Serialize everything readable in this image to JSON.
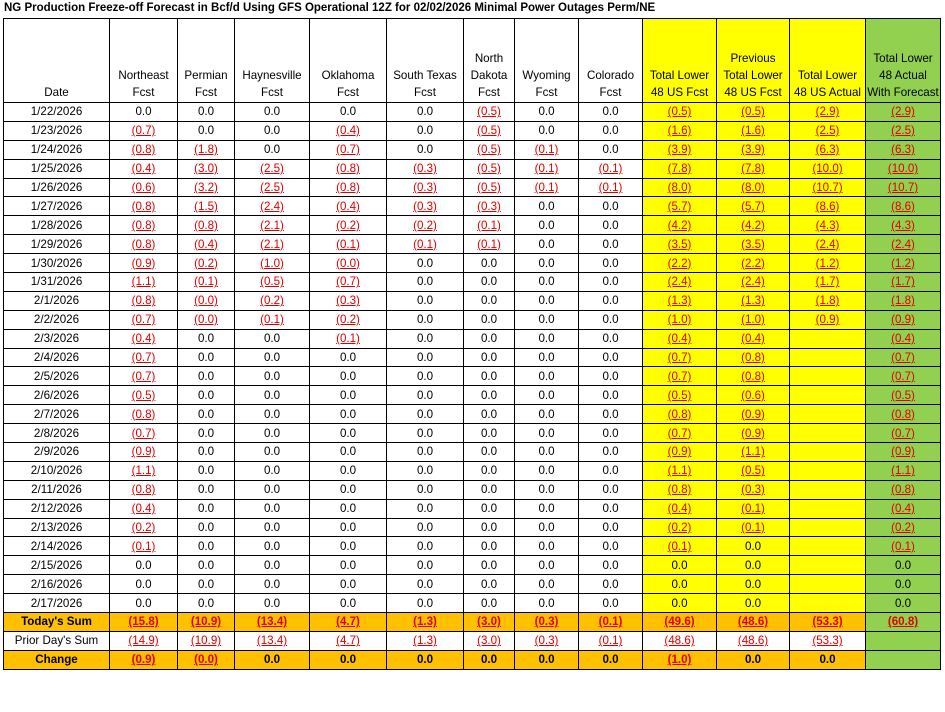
{
  "title": "NG Production Freeze-off Forecast in Bcf/d Using GFS Operational 12Z for 02/02/2026 Minimal Power Outages Perm/NE",
  "columns": [
    {
      "label": "Date",
      "fill": "none"
    },
    {
      "label": "Northeast Fcst",
      "fill": "none"
    },
    {
      "label": "Permian Fcst",
      "fill": "none"
    },
    {
      "label": "Haynesville Fcst",
      "fill": "none"
    },
    {
      "label": "Oklahoma Fcst",
      "fill": "none"
    },
    {
      "label": "South Texas Fcst",
      "fill": "none"
    },
    {
      "label": "North Dakota Fcst",
      "fill": "none"
    },
    {
      "label": "Wyoming Fcst",
      "fill": "none"
    },
    {
      "label": "Colorado Fcst",
      "fill": "none"
    },
    {
      "label": "Total Lower 48 US Fcst",
      "fill": "yellow"
    },
    {
      "label": "Previous Total Lower 48 US Fcst",
      "fill": "yellow"
    },
    {
      "label": "Total Lower 48 US Actual",
      "fill": "yellow"
    },
    {
      "label": "Total Lower 48 Actual With Forecast",
      "fill": "green"
    }
  ],
  "colors": {
    "yellow": "#ffff00",
    "green": "#92d050",
    "orange": "#ffc000",
    "negative": "#e00000"
  },
  "rows": [
    [
      "1/22/2026",
      "0.0",
      "0.0",
      "0.0",
      "0.0",
      "0.0",
      "(0.5)",
      "0.0",
      "0.0",
      "(0.5)",
      "(0.5)",
      "(2.9)",
      "(2.9)"
    ],
    [
      "1/23/2026",
      "(0.7)",
      "0.0",
      "0.0",
      "(0.4)",
      "0.0",
      "(0.5)",
      "0.0",
      "0.0",
      "(1.6)",
      "(1.6)",
      "(2.5)",
      "(2.5)"
    ],
    [
      "1/24/2026",
      "(0.8)",
      "(1.8)",
      "0.0",
      "(0.7)",
      "0.0",
      "(0.5)",
      "(0.1)",
      "0.0",
      "(3.9)",
      "(3.9)",
      "(6.3)",
      "(6.3)"
    ],
    [
      "1/25/2026",
      "(0.4)",
      "(3.0)",
      "(2.5)",
      "(0.8)",
      "(0.3)",
      "(0.5)",
      "(0.1)",
      "(0.1)",
      "(7.8)",
      "(7.8)",
      "(10.0)",
      "(10.0)"
    ],
    [
      "1/26/2026",
      "(0.6)",
      "(3.2)",
      "(2.5)",
      "(0.8)",
      "(0.3)",
      "(0.5)",
      "(0.1)",
      "(0.1)",
      "(8.0)",
      "(8.0)",
      "(10.7)",
      "(10.7)"
    ],
    [
      "1/27/2026",
      "(0.8)",
      "(1.5)",
      "(2.4)",
      "(0.4)",
      "(0.3)",
      "(0.3)",
      "0.0",
      "0.0",
      "(5.7)",
      "(5.7)",
      "(8.6)",
      "(8.6)"
    ],
    [
      "1/28/2026",
      "(0.8)",
      "(0.8)",
      "(2.1)",
      "(0.2)",
      "(0.2)",
      "(0.1)",
      "0.0",
      "0.0",
      "(4.2)",
      "(4.2)",
      "(4.3)",
      "(4.3)"
    ],
    [
      "1/29/2026",
      "(0.8)",
      "(0.4)",
      "(2.1)",
      "(0.1)",
      "(0.1)",
      "(0.1)",
      "0.0",
      "0.0",
      "(3.5)",
      "(3.5)",
      "(2.4)",
      "(2.4)"
    ],
    [
      "1/30/2026",
      "(0.9)",
      "(0.2)",
      "(1.0)",
      "(0.0)",
      "0.0",
      "0.0",
      "0.0",
      "0.0",
      "(2.2)",
      "(2.2)",
      "(1.2)",
      "(1.2)"
    ],
    [
      "1/31/2026",
      "(1.1)",
      "(0.1)",
      "(0.5)",
      "(0.7)",
      "0.0",
      "0.0",
      "0.0",
      "0.0",
      "(2.4)",
      "(2.4)",
      "(1.7)",
      "(1.7)"
    ],
    [
      "2/1/2026",
      "(0.8)",
      "(0.0)",
      "(0.2)",
      "(0.3)",
      "0.0",
      "0.0",
      "0.0",
      "0.0",
      "(1.3)",
      "(1.3)",
      "(1.8)",
      "(1.8)"
    ],
    [
      "2/2/2026",
      "(0.7)",
      "(0.0)",
      "(0.1)",
      "(0.2)",
      "0.0",
      "0.0",
      "0.0",
      "0.0",
      "(1.0)",
      "(1.0)",
      "(0.9)",
      "(0.9)"
    ],
    [
      "2/3/2026",
      "(0.4)",
      "0.0",
      "0.0",
      "(0.1)",
      "0.0",
      "0.0",
      "0.0",
      "0.0",
      "(0.4)",
      "(0.4)",
      "",
      "(0.4)"
    ],
    [
      "2/4/2026",
      "(0.7)",
      "0.0",
      "0.0",
      "0.0",
      "0.0",
      "0.0",
      "0.0",
      "0.0",
      "(0.7)",
      "(0.8)",
      "",
      "(0.7)"
    ],
    [
      "2/5/2026",
      "(0.7)",
      "0.0",
      "0.0",
      "0.0",
      "0.0",
      "0.0",
      "0.0",
      "0.0",
      "(0.7)",
      "(0.8)",
      "",
      "(0.7)"
    ],
    [
      "2/6/2026",
      "(0.5)",
      "0.0",
      "0.0",
      "0.0",
      "0.0",
      "0.0",
      "0.0",
      "0.0",
      "(0.5)",
      "(0.6)",
      "",
      "(0.5)"
    ],
    [
      "2/7/2026",
      "(0.8)",
      "0.0",
      "0.0",
      "0.0",
      "0.0",
      "0.0",
      "0.0",
      "0.0",
      "(0.8)",
      "(0.9)",
      "",
      "(0.8)"
    ],
    [
      "2/8/2026",
      "(0.7)",
      "0.0",
      "0.0",
      "0.0",
      "0.0",
      "0.0",
      "0.0",
      "0.0",
      "(0.7)",
      "(0.9)",
      "",
      "(0.7)"
    ],
    [
      "2/9/2026",
      "(0.9)",
      "0.0",
      "0.0",
      "0.0",
      "0.0",
      "0.0",
      "0.0",
      "0.0",
      "(0.9)",
      "(1.1)",
      "",
      "(0.9)"
    ],
    [
      "2/10/2026",
      "(1.1)",
      "0.0",
      "0.0",
      "0.0",
      "0.0",
      "0.0",
      "0.0",
      "0.0",
      "(1.1)",
      "(0.5)",
      "",
      "(1.1)"
    ],
    [
      "2/11/2026",
      "(0.8)",
      "0.0",
      "0.0",
      "0.0",
      "0.0",
      "0.0",
      "0.0",
      "0.0",
      "(0.8)",
      "(0.3)",
      "",
      "(0.8)"
    ],
    [
      "2/12/2026",
      "(0.4)",
      "0.0",
      "0.0",
      "0.0",
      "0.0",
      "0.0",
      "0.0",
      "0.0",
      "(0.4)",
      "(0.1)",
      "",
      "(0.4)"
    ],
    [
      "2/13/2026",
      "(0.2)",
      "0.0",
      "0.0",
      "0.0",
      "0.0",
      "0.0",
      "0.0",
      "0.0",
      "(0.2)",
      "(0.1)",
      "",
      "(0.2)"
    ],
    [
      "2/14/2026",
      "(0.1)",
      "0.0",
      "0.0",
      "0.0",
      "0.0",
      "0.0",
      "0.0",
      "0.0",
      "(0.1)",
      "0.0",
      "",
      "(0.1)"
    ],
    [
      "2/15/2026",
      "0.0",
      "0.0",
      "0.0",
      "0.0",
      "0.0",
      "0.0",
      "0.0",
      "0.0",
      "0.0",
      "0.0",
      "",
      "0.0"
    ],
    [
      "2/16/2026",
      "0.0",
      "0.0",
      "0.0",
      "0.0",
      "0.0",
      "0.0",
      "0.0",
      "0.0",
      "0.0",
      "0.0",
      "",
      "0.0"
    ],
    [
      "2/17/2026",
      "0.0",
      "0.0",
      "0.0",
      "0.0",
      "0.0",
      "0.0",
      "0.0",
      "0.0",
      "0.0",
      "0.0",
      "",
      "0.0"
    ]
  ],
  "summary": [
    {
      "kind": "today",
      "cells": [
        "Today's Sum",
        "(15.8)",
        "(10.9)",
        "(13.4)",
        "(4.7)",
        "(1.3)",
        "(3.0)",
        "(0.3)",
        "(0.1)",
        "(49.6)",
        "(48.6)",
        "(53.3)",
        "(60.8)"
      ]
    },
    {
      "kind": "prior",
      "cells": [
        "Prior Day's Sum",
        "(14.9)",
        "(10.9)",
        "(13.4)",
        "(4.7)",
        "(1.3)",
        "(3.0)",
        "(0.3)",
        "(0.1)",
        "(48.6)",
        "(48.6)",
        "(53.3)",
        ""
      ]
    },
    {
      "kind": "change",
      "cells": [
        "Change",
        "(0.9)",
        "(0.0)",
        "0.0",
        "0.0",
        "0.0",
        "0.0",
        "0.0",
        "0.0",
        "(1.0)",
        "0.0",
        "0.0",
        ""
      ]
    }
  ]
}
